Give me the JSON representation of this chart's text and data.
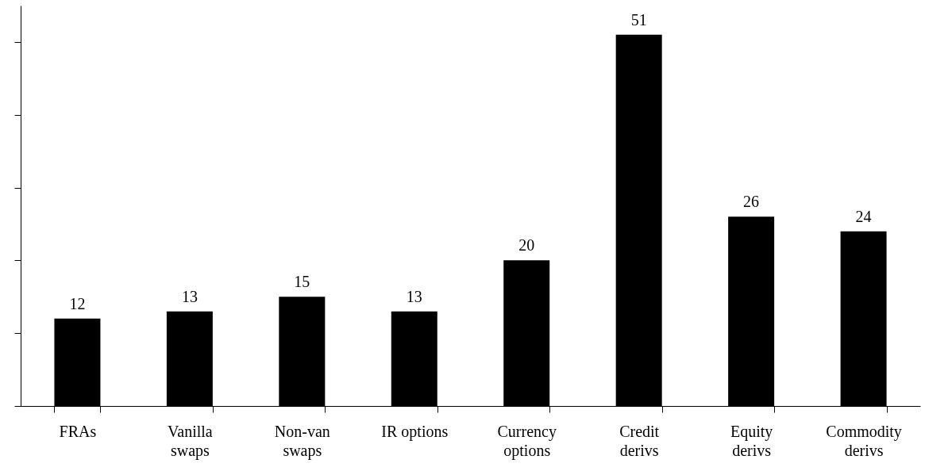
{
  "chart_data": {
    "type": "bar",
    "categories": [
      "FRAs",
      "Vanilla swaps",
      "Non-van swaps",
      "IR options",
      "Currency options",
      "Credit derivs",
      "Equity derivs",
      "Commodity derivs"
    ],
    "values": [
      12,
      13,
      15,
      13,
      20,
      51,
      26,
      24
    ],
    "color": "#000000",
    "data_labels": true,
    "tick_labels": "x"
  }
}
